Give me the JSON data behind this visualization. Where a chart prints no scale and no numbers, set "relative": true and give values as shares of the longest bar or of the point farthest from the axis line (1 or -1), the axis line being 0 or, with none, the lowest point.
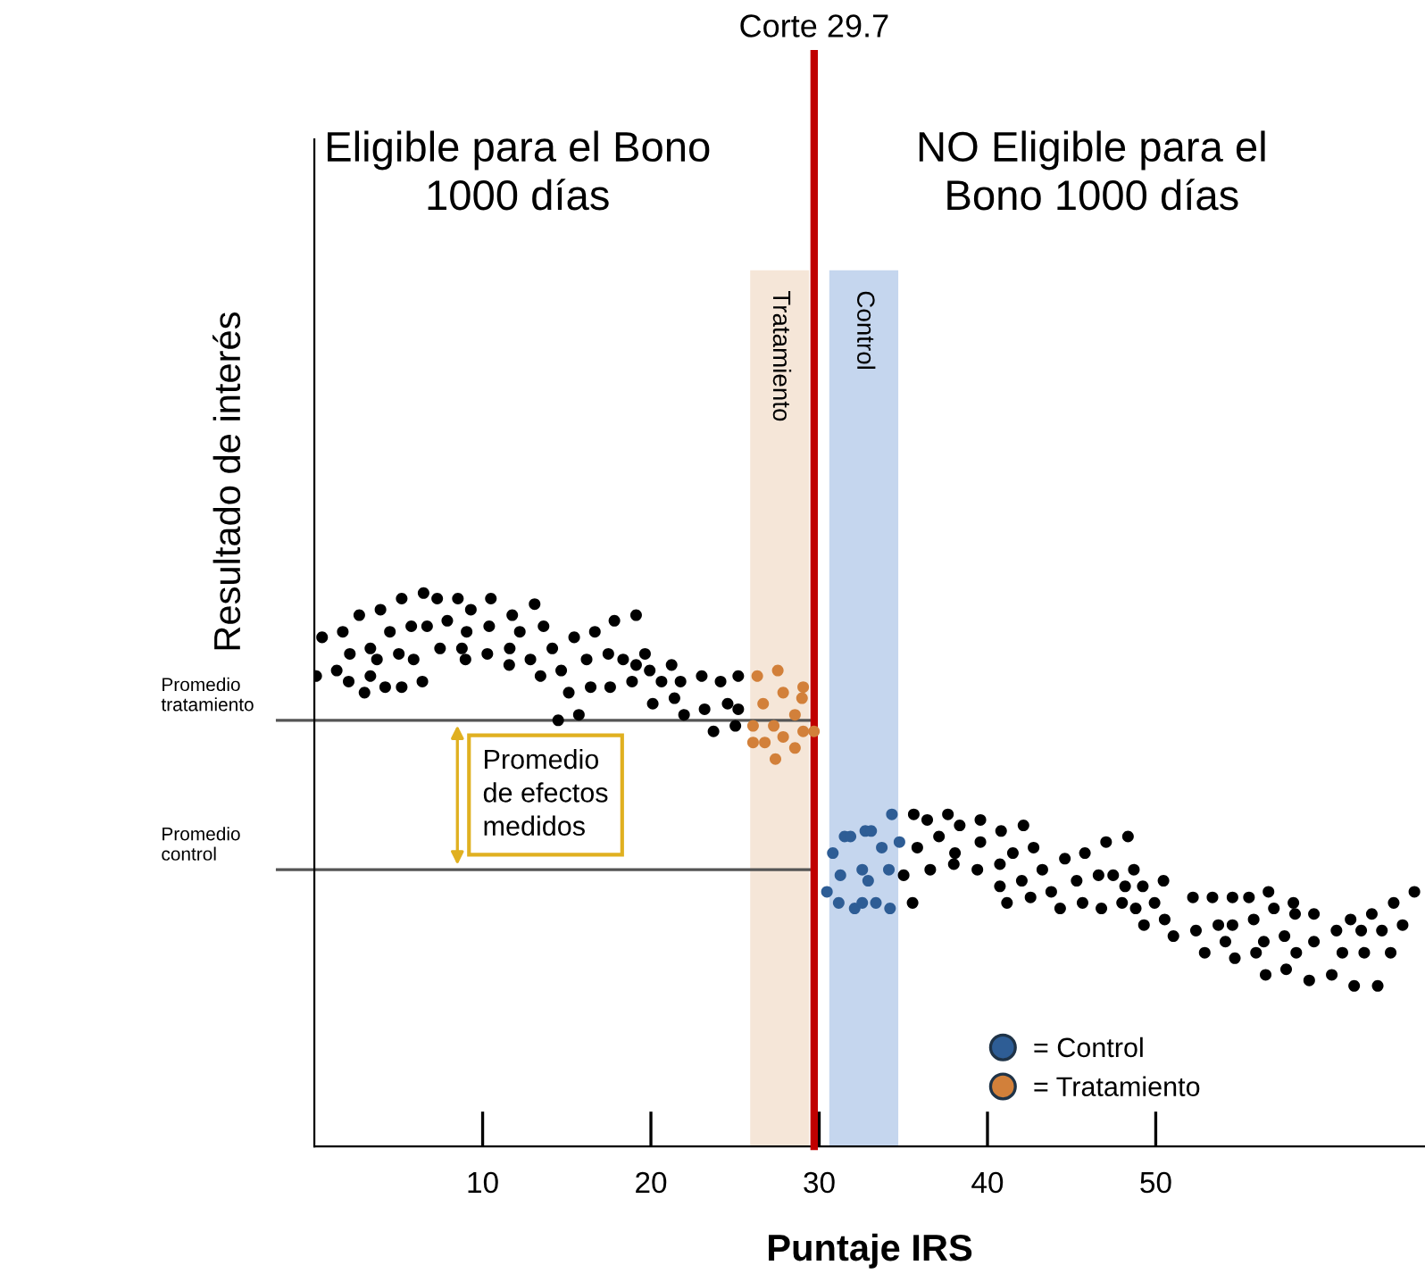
{
  "chart_data": {
    "type": "scatter",
    "relative": true,
    "xlabel": "Puntaje IRS",
    "ylabel": "Resultado de interés",
    "xlim": [
      0,
      66
    ],
    "xticks": [
      10,
      20,
      30,
      40,
      50
    ],
    "grid": false,
    "legend": "bottom right",
    "marker": "circle",
    "series": [
      {
        "color": "#000000",
        "x": [
          0.46,
          0.11,
          1.69,
          2.67,
          1.33,
          2.11,
          2.04,
          2.98,
          3.33,
          3.33,
          3.72,
          3.93,
          4.21,
          4.49,
          5.02,
          5.19,
          5.19,
          5.76,
          5.9,
          6.42,
          6.49,
          6.7,
          7.3,
          7.47,
          7.9,
          8.53,
          8.77,
          8.98,
          9.05,
          9.3,
          10.28,
          10.39,
          10.49,
          11.58,
          11.61,
          11.76,
          12.21,
          12.84,
          13.09,
          13.44,
          13.62,
          14.14,
          14.67,
          15.12,
          15.44,
          16.18,
          16.42,
          16.67,
          17.47,
          17.58,
          17.83,
          18.35,
          18.88,
          19.12,
          19.12,
          19.65,
          19.93,
          20.11,
          20.63,
          21.23,
          21.4,
          21.76,
          21.97,
          23.02,
          23.19,
          23.72,
          24.14,
          24.56,
          25.02,
          25.19,
          25.19,
          14.49,
          15.72,
          35.62,
          36.42,
          37.65,
          38.35,
          39.58,
          40.81,
          42.14,
          35.83,
          37.12,
          38.07,
          39.58,
          41.51,
          42.74,
          44.6,
          45.79,
          47.05,
          48.35,
          35.02,
          36.6,
          38.0,
          39.4,
          40.74,
          40.74,
          42.04,
          43.26,
          45.3,
          46.6,
          47.47,
          48.7,
          35.55,
          41.16,
          42.56,
          43.79,
          44.32,
          45.65,
          46.77,
          48.0,
          48.81,
          48.18,
          49.23,
          49.93,
          50.46,
          49.3,
          50.53,
          51.05,
          52.21,
          52.39,
          52.91,
          53.37,
          53.72,
          54.14,
          54.56,
          54.56,
          54.7,
          55.54,
          55.82,
          55.96,
          56.53,
          56.7,
          57.02,
          56.42,
          57.65,
          57.75,
          58.18,
          58.35,
          58.28,
          59.4,
          59.4,
          59.12,
          60.46,
          60.74,
          61.09,
          61.58,
          61.79,
          62.21,
          62.39,
          62.84,
          63.19,
          63.44,
          63.96,
          64.14,
          64.67,
          65.37
        ],
        "values": [
          0.92,
          0.85,
          0.93,
          0.96,
          0.86,
          0.89,
          0.84,
          0.82,
          0.9,
          0.85,
          0.88,
          0.97,
          0.83,
          0.93,
          0.89,
          0.99,
          0.83,
          0.94,
          0.88,
          0.84,
          1.0,
          0.94,
          0.99,
          0.9,
          0.95,
          0.99,
          0.9,
          0.88,
          0.93,
          0.97,
          0.89,
          0.94,
          0.99,
          0.87,
          0.9,
          0.96,
          0.93,
          0.88,
          0.98,
          0.85,
          0.94,
          0.9,
          0.86,
          0.82,
          0.92,
          0.88,
          0.83,
          0.93,
          0.89,
          0.83,
          0.95,
          0.88,
          0.84,
          0.96,
          0.87,
          0.89,
          0.86,
          0.8,
          0.84,
          0.87,
          0.81,
          0.84,
          0.78,
          0.85,
          0.79,
          0.75,
          0.84,
          0.8,
          0.76,
          0.85,
          0.79,
          0.77,
          0.78,
          0.6,
          0.59,
          0.6,
          0.58,
          0.59,
          0.57,
          0.58,
          0.54,
          0.56,
          0.53,
          0.55,
          0.53,
          0.54,
          0.52,
          0.53,
          0.55,
          0.56,
          0.49,
          0.5,
          0.51,
          0.5,
          0.51,
          0.47,
          0.48,
          0.5,
          0.48,
          0.49,
          0.49,
          0.5,
          0.44,
          0.44,
          0.45,
          0.46,
          0.43,
          0.44,
          0.43,
          0.44,
          0.43,
          0.47,
          0.47,
          0.44,
          0.48,
          0.4,
          0.41,
          0.38,
          0.45,
          0.39,
          0.35,
          0.45,
          0.4,
          0.37,
          0.45,
          0.4,
          0.34,
          0.45,
          0.41,
          0.35,
          0.31,
          0.46,
          0.43,
          0.37,
          0.38,
          0.32,
          0.44,
          0.35,
          0.42,
          0.42,
          0.37,
          0.3,
          0.31,
          0.39,
          0.35,
          0.41,
          0.29,
          0.39,
          0.35,
          0.42,
          0.29,
          0.39,
          0.35,
          0.44,
          0.4,
          0.46
        ]
      },
      {
        "name": "= Control",
        "color": "#2e5d95",
        "x": [
          30.81,
          31.51,
          31.86,
          32.74,
          33.09,
          34.32,
          33.72,
          34.77,
          31.26,
          32.56,
          32.91,
          34.14,
          30.46,
          31.16,
          32.11,
          32.56,
          33.37,
          34.21
        ],
        "values": [
          0.53,
          0.56,
          0.56,
          0.57,
          0.57,
          0.6,
          0.54,
          0.55,
          0.49,
          0.5,
          0.48,
          0.5,
          0.46,
          0.44,
          0.43,
          0.44,
          0.44,
          0.43
        ]
      },
      {
        "name": "= Tratamiento",
        "color": "#d2803a",
        "x": [
          26.32,
          27.54,
          26.67,
          27.86,
          29.05,
          28.98,
          26.07,
          27.3,
          28.56,
          26.77,
          27.86,
          29.05,
          29.69,
          28.56,
          26.07,
          27.4
        ],
        "values": [
          0.85,
          0.86,
          0.8,
          0.82,
          0.83,
          0.81,
          0.76,
          0.76,
          0.78,
          0.73,
          0.74,
          0.75,
          0.75,
          0.72,
          0.73,
          0.7
        ]
      }
    ],
    "ref_lines": [
      {
        "axis": "x",
        "value": 29.7,
        "label": "Corte 29.7",
        "color": "#c00000"
      },
      {
        "axis": "y",
        "value": 0.77,
        "label": "Promedio\ntratamiento",
        "color": "#555555"
      },
      {
        "axis": "y",
        "value": 0.5,
        "label": "Promedio\ncontrol",
        "color": "#555555"
      }
    ],
    "bands": [
      {
        "axis": "x",
        "from": 25.9,
        "to": 29.4,
        "label": "Tratamiento",
        "color": "#f5e6d8"
      },
      {
        "axis": "x",
        "from": 30.6,
        "to": 34.7,
        "label": "Control",
        "color": "#c5d6ee"
      }
    ],
    "annotations": [
      "Eligible para el Bono\n1000 días",
      "NO Eligible para el\nBono 1000 días",
      "Promedio\nde efectos\nmedidos"
    ]
  }
}
